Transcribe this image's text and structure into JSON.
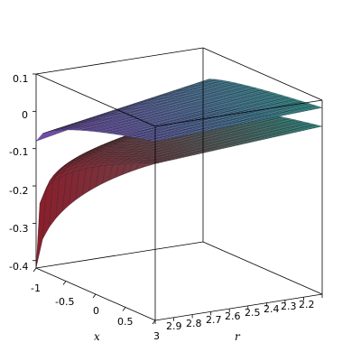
{
  "chart_data": {
    "type": "surface3d",
    "axes": {
      "x": {
        "label": "x",
        "range": [
          -1,
          1
        ],
        "ticks": [
          "-1",
          "-0.5",
          "0",
          "0.5"
        ]
      },
      "r": {
        "label": "r",
        "range": [
          2.1,
          3
        ],
        "ticks": [
          "3",
          "2.9",
          "2.8",
          "2.7",
          "2.6",
          "2.5",
          "2.4",
          "2.3",
          "2.2"
        ]
      },
      "z": {
        "label": "",
        "range": [
          -0.42,
          0.1
        ],
        "ticks": [
          "0.1",
          "0",
          "-0.1",
          "-0.2",
          "-0.3",
          "-0.4"
        ]
      }
    },
    "series": [
      {
        "surface": "upper",
        "x_range": [
          -1,
          1
        ],
        "r_range": [
          2.1,
          3
        ],
        "z_at_x_min": [
          -0.08,
          0.01
        ],
        "z_at_x_max": [
          0.06,
          0.08
        ],
        "colors": [
          "#7a4fb8",
          "#2f8f86"
        ]
      },
      {
        "surface": "lower",
        "x_range": [
          -1,
          1
        ],
        "r_range": [
          2.1,
          3
        ],
        "z_at_x_min": [
          -0.42,
          -0.08
        ],
        "z_at_x_max": [
          0.0,
          0.03
        ],
        "colors": [
          "#8a1f2c",
          "#2f8f86"
        ]
      }
    ],
    "grid": false,
    "box": true
  }
}
